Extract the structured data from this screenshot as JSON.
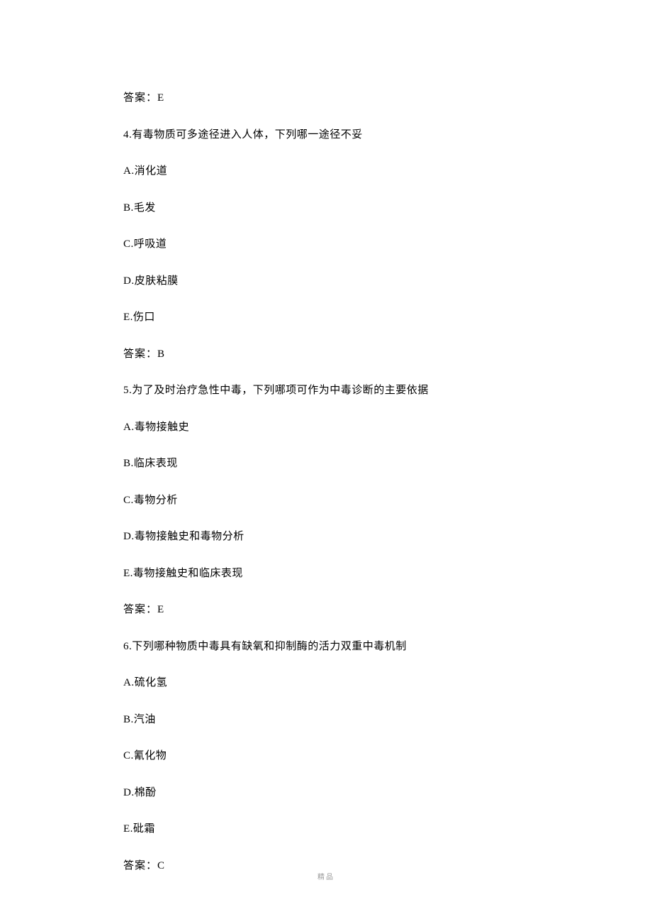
{
  "content": {
    "text_color": "#000000",
    "background_color": "#ffffff",
    "font_size": 15,
    "line_spacing": 30.5,
    "lines": [
      {
        "text": "答案：E",
        "type": "answer"
      },
      {
        "text": "4.有毒物质可多途径进入人体，下列哪一途径不妥",
        "type": "question"
      },
      {
        "text": "A.消化道",
        "type": "option"
      },
      {
        "text": "B.毛发",
        "type": "option"
      },
      {
        "text": "C.呼吸道",
        "type": "option"
      },
      {
        "text": "D.皮肤粘膜",
        "type": "option"
      },
      {
        "text": "E.伤口",
        "type": "option"
      },
      {
        "text": "答案：B",
        "type": "answer"
      },
      {
        "text": "5.为了及时治疗急性中毒，下列哪项可作为中毒诊断的主要依据",
        "type": "question"
      },
      {
        "text": "A.毒物接触史",
        "type": "option"
      },
      {
        "text": "B.临床表现",
        "type": "option"
      },
      {
        "text": "C.毒物分析",
        "type": "option"
      },
      {
        "text": "D.毒物接触史和毒物分析",
        "type": "option"
      },
      {
        "text": "E.毒物接触史和临床表现",
        "type": "option"
      },
      {
        "text": "答案：E",
        "type": "answer"
      },
      {
        "text": "6.下列哪种物质中毒具有缺氧和抑制酶的活力双重中毒机制",
        "type": "question"
      },
      {
        "text": "A.硫化氢",
        "type": "option"
      },
      {
        "text": "B.汽油",
        "type": "option"
      },
      {
        "text": "C.氰化物",
        "type": "option"
      },
      {
        "text": "D.棉酚",
        "type": "option"
      },
      {
        "text": "E.砒霜",
        "type": "option"
      },
      {
        "text": "答案：C",
        "type": "answer"
      }
    ]
  },
  "footer": {
    "text": "精品",
    "color": "#999999",
    "font_size": 10
  }
}
